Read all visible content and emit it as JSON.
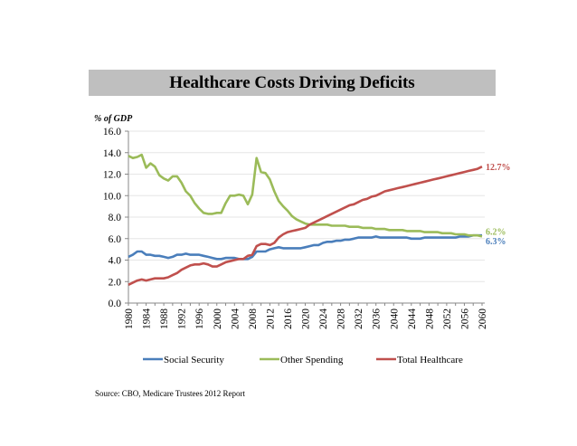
{
  "chart_data": {
    "type": "line",
    "title": "Healthcare Costs Driving Deficits",
    "ylabel": "% of GDP",
    "xlabel": "",
    "ylim": [
      0,
      16
    ],
    "yticks": [
      "0.0",
      "2.0",
      "4.0",
      "6.0",
      "8.0",
      "10.0",
      "12.0",
      "14.0",
      "16.0"
    ],
    "xlim": [
      1980,
      2060
    ],
    "xticks": [
      "1980",
      "1984",
      "1988",
      "1992",
      "1996",
      "2000",
      "2004",
      "2008",
      "2012",
      "2016",
      "2020",
      "2024",
      "2028",
      "2032",
      "2036",
      "2040",
      "2044",
      "2048",
      "2052",
      "2056",
      "2060"
    ],
    "grid": "horizontal",
    "legend_position": "bottom",
    "series": [
      {
        "name": "Social Security",
        "color": "#4a7ebb",
        "end_label": "6.3%",
        "values": [
          4.3,
          4.5,
          4.8,
          4.8,
          4.5,
          4.5,
          4.4,
          4.4,
          4.3,
          4.2,
          4.3,
          4.5,
          4.5,
          4.6,
          4.5,
          4.5,
          4.5,
          4.4,
          4.3,
          4.2,
          4.1,
          4.1,
          4.2,
          4.2,
          4.2,
          4.1,
          4.1,
          4.1,
          4.3,
          4.8,
          4.8,
          4.8,
          5.0,
          5.1,
          5.2,
          5.1,
          5.1,
          5.1,
          5.1,
          5.1,
          5.2,
          5.3,
          5.4,
          5.4,
          5.6,
          5.7,
          5.7,
          5.8,
          5.8,
          5.9,
          5.9,
          6.0,
          6.1,
          6.1,
          6.1,
          6.1,
          6.2,
          6.1,
          6.1,
          6.1,
          6.1,
          6.1,
          6.1,
          6.1,
          6.0,
          6.0,
          6.0,
          6.1,
          6.1,
          6.1,
          6.1,
          6.1,
          6.1,
          6.1,
          6.1,
          6.2,
          6.2,
          6.2,
          6.3,
          6.3,
          6.3
        ]
      },
      {
        "name": "Other Spending",
        "color": "#9bbb59",
        "end_label": "6.2%",
        "values": [
          13.7,
          13.5,
          13.6,
          13.8,
          12.6,
          13.0,
          12.7,
          11.9,
          11.6,
          11.4,
          11.8,
          11.8,
          11.2,
          10.4,
          10.0,
          9.3,
          8.8,
          8.4,
          8.3,
          8.3,
          8.4,
          8.4,
          9.3,
          10.0,
          10.0,
          10.1,
          10.0,
          9.2,
          10.1,
          13.5,
          12.2,
          12.1,
          11.5,
          10.4,
          9.5,
          9.0,
          8.6,
          8.1,
          7.8,
          7.6,
          7.4,
          7.3,
          7.3,
          7.3,
          7.3,
          7.3,
          7.2,
          7.2,
          7.2,
          7.2,
          7.1,
          7.1,
          7.1,
          7.0,
          7.0,
          7.0,
          6.9,
          6.9,
          6.9,
          6.8,
          6.8,
          6.8,
          6.8,
          6.7,
          6.7,
          6.7,
          6.7,
          6.6,
          6.6,
          6.6,
          6.6,
          6.5,
          6.5,
          6.5,
          6.4,
          6.4,
          6.4,
          6.3,
          6.3,
          6.3,
          6.2
        ]
      },
      {
        "name": "Total Healthcare",
        "color": "#c0504d",
        "end_label": "12.7%",
        "values": [
          1.7,
          1.9,
          2.1,
          2.2,
          2.1,
          2.2,
          2.3,
          2.3,
          2.3,
          2.4,
          2.6,
          2.8,
          3.1,
          3.3,
          3.5,
          3.6,
          3.6,
          3.7,
          3.6,
          3.4,
          3.4,
          3.6,
          3.8,
          3.9,
          4.0,
          4.1,
          4.1,
          4.4,
          4.5,
          5.3,
          5.5,
          5.5,
          5.4,
          5.6,
          6.1,
          6.4,
          6.6,
          6.7,
          6.8,
          6.9,
          7.0,
          7.3,
          7.5,
          7.7,
          7.9,
          8.1,
          8.3,
          8.5,
          8.7,
          8.9,
          9.1,
          9.2,
          9.4,
          9.6,
          9.7,
          9.9,
          10.0,
          10.2,
          10.4,
          10.5,
          10.6,
          10.7,
          10.8,
          10.9,
          11.0,
          11.1,
          11.2,
          11.3,
          11.4,
          11.5,
          11.6,
          11.7,
          11.8,
          11.9,
          12.0,
          12.1,
          12.2,
          12.3,
          12.4,
          12.5,
          12.7
        ]
      }
    ],
    "source": "Source: CBO, Medicare Trustees 2012 Report"
  }
}
